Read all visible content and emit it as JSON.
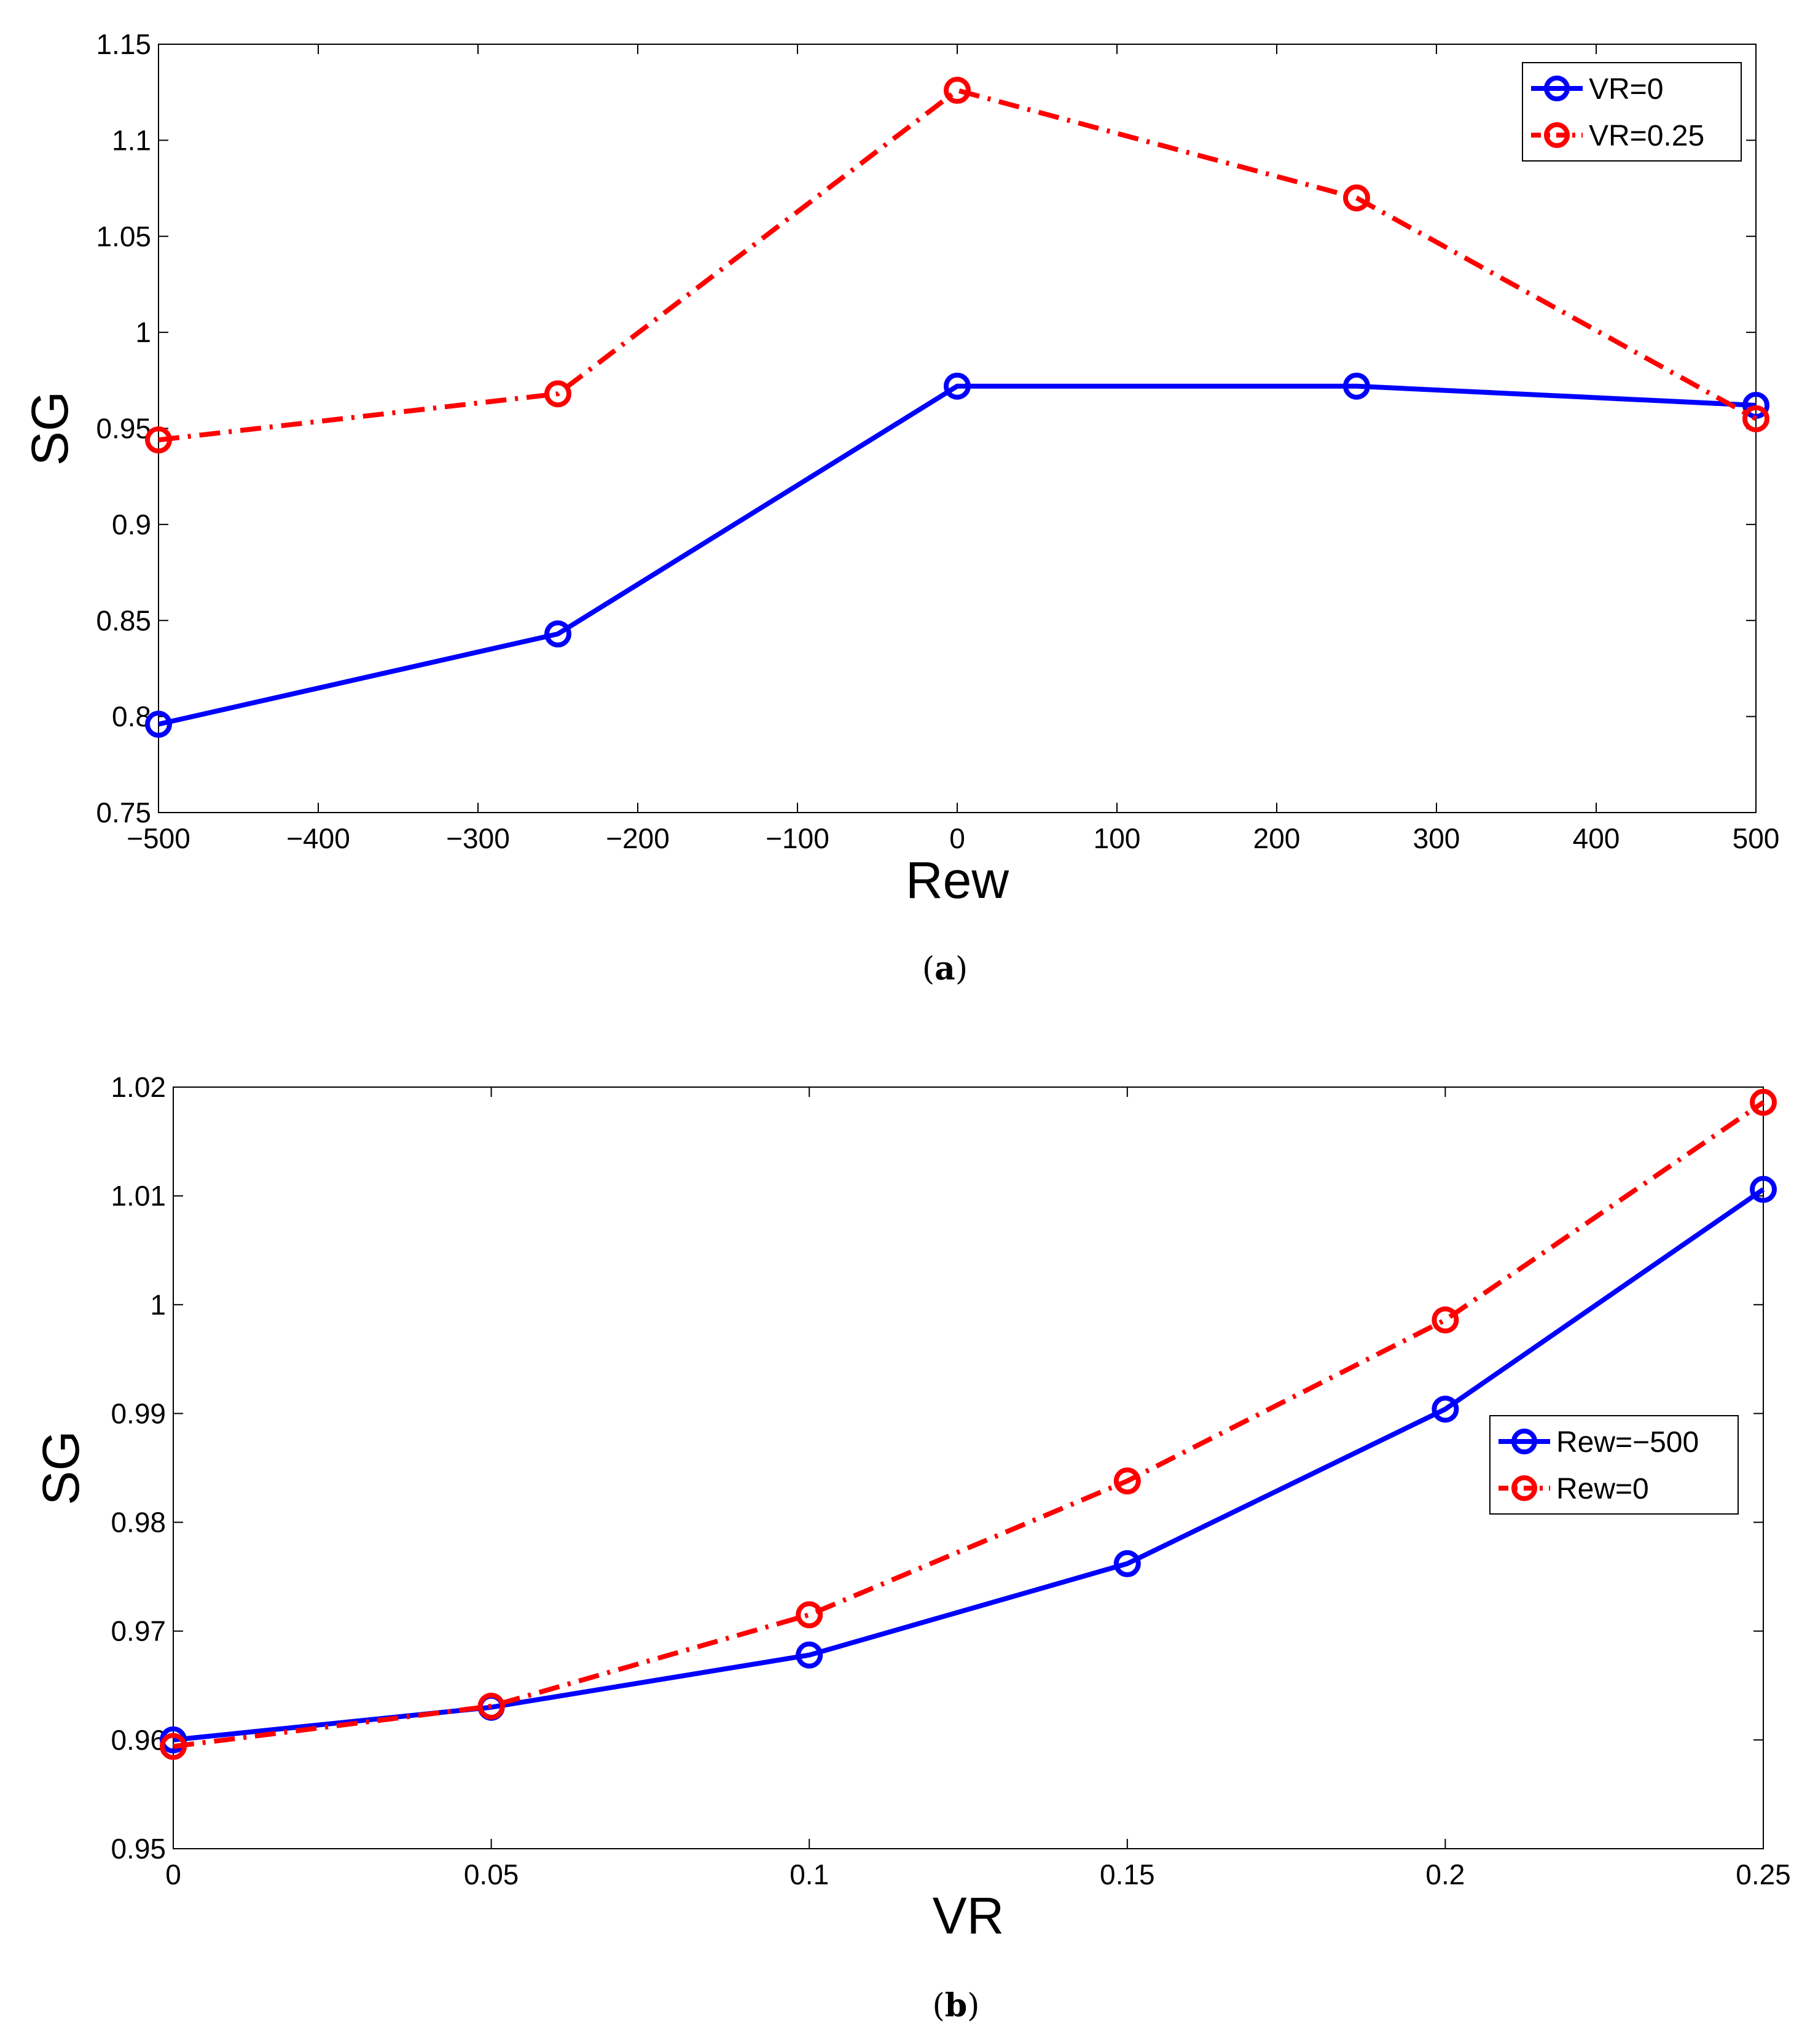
{
  "chart_data": [
    {
      "type": "line",
      "caption_letter": "a",
      "x": [
        -500,
        -250,
        0,
        250,
        500
      ],
      "series": [
        {
          "name": "VR=0",
          "color": "#0000FF",
          "dash": "solid",
          "values": [
            0.796,
            0.843,
            0.972,
            0.972,
            0.962
          ]
        },
        {
          "name": "VR=0.25",
          "color": "#FF0000",
          "dash": "dashdot",
          "values": [
            0.944,
            0.968,
            1.126,
            1.07,
            0.955
          ]
        }
      ],
      "xlabel": "Rew",
      "ylabel": "SG",
      "xlim": [
        -500,
        500
      ],
      "ylim": [
        0.75,
        1.15
      ],
      "xticks": [
        -500,
        -400,
        -300,
        -200,
        -100,
        0,
        100,
        200,
        300,
        400,
        500
      ],
      "xtick_labels": [
        "−500",
        "−400",
        "−300",
        "−200",
        "−100",
        "0",
        "100",
        "200",
        "300",
        "400",
        "500"
      ],
      "yticks": [
        0.75,
        0.8,
        0.85,
        0.9,
        0.95,
        1,
        1.05,
        1.1,
        1.15
      ],
      "ytick_labels": [
        "0.75",
        "0.8",
        "0.85",
        "0.9",
        "0.95",
        "1",
        "1.05",
        "1.1",
        "1.15"
      ],
      "legend_position": "top-right",
      "grid": false
    },
    {
      "type": "line",
      "caption_letter": "b",
      "x": [
        0,
        0.05,
        0.1,
        0.15,
        0.2,
        0.25
      ],
      "series": [
        {
          "name": "Rew=−500",
          "color": "#0000FF",
          "dash": "solid",
          "values": [
            0.96,
            0.963,
            0.9678,
            0.9762,
            0.9904,
            1.0106
          ]
        },
        {
          "name": "Rew=0",
          "color": "#FF0000",
          "dash": "dashdot",
          "values": [
            0.9594,
            0.9631,
            0.9715,
            0.9838,
            0.9986,
            1.0186
          ]
        }
      ],
      "xlabel": "VR",
      "ylabel": "SG",
      "xlim": [
        0,
        0.25
      ],
      "ylim": [
        0.95,
        1.02
      ],
      "xticks": [
        0,
        0.05,
        0.1,
        0.15,
        0.2,
        0.25
      ],
      "xtick_labels": [
        "0",
        "0.05",
        "0.1",
        "0.15",
        "0.2",
        "0.25"
      ],
      "yticks": [
        0.95,
        0.96,
        0.97,
        0.98,
        0.99,
        1,
        1.01,
        1.02
      ],
      "ytick_labels": [
        "0.95",
        "0.96",
        "0.97",
        "0.98",
        "0.99",
        "1",
        "1.01",
        "1.02"
      ],
      "legend_position": "right",
      "grid": false
    }
  ]
}
